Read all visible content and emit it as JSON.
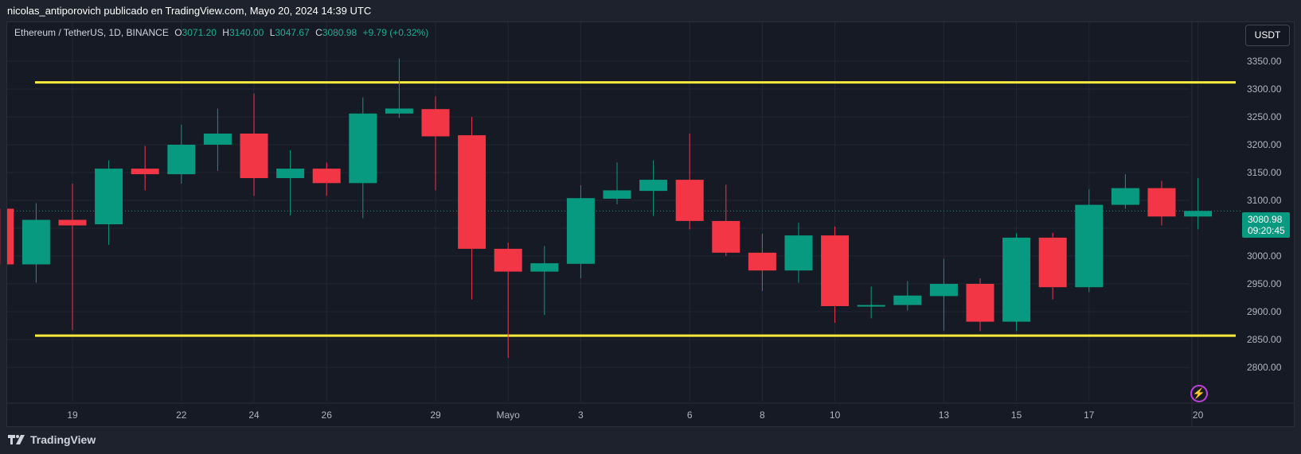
{
  "header": {
    "publication": "nicolas_antiporovich publicado en TradingView.com, Mayo 20, 2024 14:39 UTC"
  },
  "legend": {
    "symbol": "Ethereum / TetherUS, 1D, BINANCE",
    "open_label": "O",
    "open": "3071.20",
    "high_label": "H",
    "high": "3140.00",
    "low_label": "L",
    "low": "3047.67",
    "close_label": "C",
    "close": "3080.98",
    "change": "+9.79 (+0.32%)"
  },
  "currency_button": "USDT",
  "price_tag": {
    "price": "3080.98",
    "countdown": "09:20:45"
  },
  "footer": {
    "brand": "TradingView"
  },
  "colors": {
    "up": "#089981",
    "down": "#f23645",
    "level_line": "#ffeb3b",
    "background": "#161a25",
    "grid": "#232733",
    "text": "#b2b5be"
  },
  "chart_data": {
    "type": "candlestick",
    "y_ticks": [
      2800,
      2850,
      2900,
      2950,
      3000,
      3050,
      3100,
      3150,
      3200,
      3250,
      3300,
      3350
    ],
    "y_tick_labels": [
      "2800.00",
      "2850.00",
      "2900.00",
      "2950.00",
      "3000.00",
      "3050.00",
      "3100.00",
      "3150.00",
      "3200.00",
      "3250.00",
      "3300.00",
      "3350.00"
    ],
    "x_tick_labels": [
      {
        "label": "19",
        "date": "2024-04-19"
      },
      {
        "label": "22",
        "date": "2024-04-22"
      },
      {
        "label": "24",
        "date": "2024-04-24"
      },
      {
        "label": "26",
        "date": "2024-04-26"
      },
      {
        "label": "29",
        "date": "2024-04-29"
      },
      {
        "label": "Mayo",
        "date": "2024-05-01"
      },
      {
        "label": "3",
        "date": "2024-05-03"
      },
      {
        "label": "6",
        "date": "2024-05-06"
      },
      {
        "label": "8",
        "date": "2024-05-08"
      },
      {
        "label": "10",
        "date": "2024-05-10"
      },
      {
        "label": "13",
        "date": "2024-05-13"
      },
      {
        "label": "15",
        "date": "2024-05-15"
      },
      {
        "label": "17",
        "date": "2024-05-17"
      },
      {
        "label": "20",
        "date": "2024-05-20"
      }
    ],
    "candles": [
      {
        "date": "2024-04-17",
        "open": 3085,
        "high": 3085,
        "low": 2985,
        "close": 2985
      },
      {
        "date": "2024-04-18",
        "open": 2985,
        "high": 3095,
        "low": 2952,
        "close": 3065
      },
      {
        "date": "2024-04-19",
        "open": 3065,
        "high": 3130,
        "low": 2867,
        "close": 3055
      },
      {
        "date": "2024-04-20",
        "open": 3057,
        "high": 3172,
        "low": 3020,
        "close": 3157
      },
      {
        "date": "2024-04-21",
        "open": 3157,
        "high": 3198,
        "low": 3118,
        "close": 3147
      },
      {
        "date": "2024-04-22",
        "open": 3147,
        "high": 3236,
        "low": 3130,
        "close": 3200
      },
      {
        "date": "2024-04-23",
        "open": 3200,
        "high": 3265,
        "low": 3153,
        "close": 3220
      },
      {
        "date": "2024-04-24",
        "open": 3220,
        "high": 3292,
        "low": 3108,
        "close": 3140
      },
      {
        "date": "2024-04-25",
        "open": 3140,
        "high": 3190,
        "low": 3073,
        "close": 3157
      },
      {
        "date": "2024-04-26",
        "open": 3157,
        "high": 3168,
        "low": 3108,
        "close": 3131
      },
      {
        "date": "2024-04-27",
        "open": 3131,
        "high": 3285,
        "low": 3068,
        "close": 3256
      },
      {
        "date": "2024-04-28",
        "open": 3256,
        "high": 3355,
        "low": 3248,
        "close": 3265
      },
      {
        "date": "2024-04-29",
        "open": 3264,
        "high": 3287,
        "low": 3118,
        "close": 3215
      },
      {
        "date": "2024-04-30",
        "open": 3217,
        "high": 3250,
        "low": 2922,
        "close": 3013
      },
      {
        "date": "2024-05-01",
        "open": 3013,
        "high": 3024,
        "low": 2817,
        "close": 2972
      },
      {
        "date": "2024-05-02",
        "open": 2972,
        "high": 3018,
        "low": 2894,
        "close": 2987
      },
      {
        "date": "2024-05-03",
        "open": 2986,
        "high": 3127,
        "low": 2960,
        "close": 3104
      },
      {
        "date": "2024-05-04",
        "open": 3103,
        "high": 3168,
        "low": 3093,
        "close": 3118
      },
      {
        "date": "2024-05-05",
        "open": 3117,
        "high": 3172,
        "low": 3072,
        "close": 3137
      },
      {
        "date": "2024-05-06",
        "open": 3137,
        "high": 3220,
        "low": 3048,
        "close": 3063
      },
      {
        "date": "2024-05-07",
        "open": 3063,
        "high": 3128,
        "low": 3000,
        "close": 3006
      },
      {
        "date": "2024-05-08",
        "open": 3006,
        "high": 3040,
        "low": 2937,
        "close": 2974
      },
      {
        "date": "2024-05-09",
        "open": 2974,
        "high": 3060,
        "low": 2952,
        "close": 3037
      },
      {
        "date": "2024-05-10",
        "open": 3037,
        "high": 3053,
        "low": 2880,
        "close": 2910
      },
      {
        "date": "2024-05-11",
        "open": 2910,
        "high": 2945,
        "low": 2888,
        "close": 2912
      },
      {
        "date": "2024-05-12",
        "open": 2912,
        "high": 2955,
        "low": 2902,
        "close": 2929
      },
      {
        "date": "2024-05-13",
        "open": 2928,
        "high": 2995,
        "low": 2866,
        "close": 2950
      },
      {
        "date": "2024-05-14",
        "open": 2950,
        "high": 2960,
        "low": 2865,
        "close": 2882
      },
      {
        "date": "2024-05-15",
        "open": 2882,
        "high": 3041,
        "low": 2865,
        "close": 3033
      },
      {
        "date": "2024-05-16",
        "open": 3033,
        "high": 3042,
        "low": 2922,
        "close": 2944
      },
      {
        "date": "2024-05-17",
        "open": 2944,
        "high": 3120,
        "low": 2935,
        "close": 3092
      },
      {
        "date": "2024-05-18",
        "open": 3092,
        "high": 3147,
        "low": 3085,
        "close": 3122
      },
      {
        "date": "2024-05-19",
        "open": 3122,
        "high": 3135,
        "low": 3055,
        "close": 3071
      },
      {
        "date": "2024-05-20",
        "open": 3071,
        "high": 3140,
        "low": 3048,
        "close": 3081
      }
    ],
    "horizontal_levels": [
      3312,
      2857
    ],
    "current_price": 3080.98,
    "grid": true
  }
}
